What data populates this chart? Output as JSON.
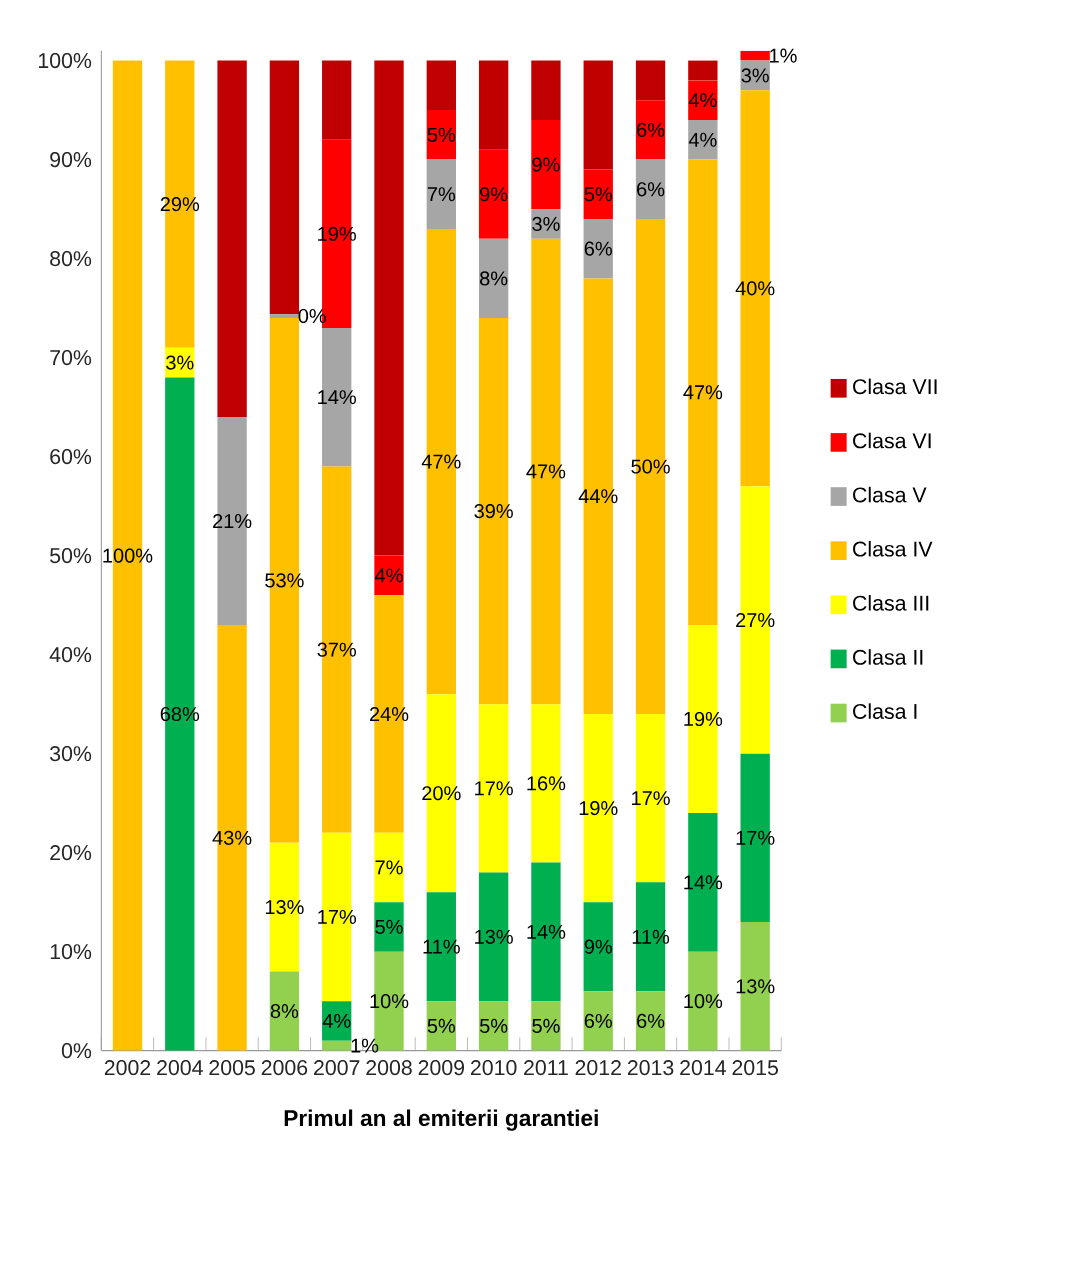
{
  "chart_data": {
    "type": "bar",
    "stacked": true,
    "xlabel": "Primul an al emiterii garantiei",
    "categories": [
      "2002",
      "2004",
      "2005",
      "2006",
      "2007",
      "2008",
      "2009",
      "2010",
      "2011",
      "2012",
      "2013",
      "2014",
      "2015"
    ],
    "ylim": [
      0,
      101
    ],
    "yticks": [
      {
        "value": 0,
        "label": "0%"
      },
      {
        "value": 10,
        "label": "10%"
      },
      {
        "value": 20,
        "label": "20%"
      },
      {
        "value": 30,
        "label": "30%"
      },
      {
        "value": 40,
        "label": "40%"
      },
      {
        "value": 50,
        "label": "50%"
      },
      {
        "value": 60,
        "label": "60%"
      },
      {
        "value": 70,
        "label": "70%"
      },
      {
        "value": 80,
        "label": "80%"
      },
      {
        "value": 90,
        "label": "90%"
      },
      {
        "value": 100,
        "label": "100%"
      }
    ],
    "legend": "right",
    "grid": false,
    "series": [
      {
        "name": "Clasa I",
        "color": "#92d050",
        "values": [
          0,
          0,
          0,
          8,
          1,
          10,
          5,
          5,
          5,
          6,
          6,
          10,
          13
        ],
        "value_labels": [
          null,
          null,
          null,
          "8%",
          "1%",
          "10%",
          "5%",
          "5%",
          "5%",
          "6%",
          "6%",
          "10%",
          "13%"
        ]
      },
      {
        "name": "Clasa II",
        "color": "#00b050",
        "values": [
          0,
          68,
          0,
          0,
          4,
          5,
          11,
          13,
          14,
          9,
          11,
          14,
          17
        ],
        "value_labels": [
          null,
          "68%",
          null,
          null,
          "4%",
          "5%",
          "11%",
          "13%",
          "14%",
          "9%",
          "11%",
          "14%",
          "17%"
        ]
      },
      {
        "name": "Clasa III",
        "color": "#ffff00",
        "values": [
          0,
          3,
          0,
          13,
          17,
          7,
          20,
          17,
          16,
          19,
          17,
          19,
          27
        ],
        "value_labels": [
          null,
          "3%",
          null,
          "13%",
          "17%",
          "7%",
          "20%",
          "17%",
          "16%",
          "19%",
          "17%",
          "19%",
          "27%"
        ]
      },
      {
        "name": "Clasa IV",
        "color": "#ffc000",
        "values": [
          100,
          29,
          43,
          53,
          37,
          24,
          47,
          39,
          47,
          44,
          50,
          47,
          40
        ],
        "value_labels": [
          "100%",
          "29%",
          "43%",
          "53%",
          "37%",
          "24%",
          "47%",
          "39%",
          "47%",
          "44%",
          "50%",
          "47%",
          "40%"
        ]
      },
      {
        "name": "Clasa V",
        "color": "#a6a6a6",
        "values": [
          0,
          0,
          21,
          0.4,
          14,
          0,
          7,
          8,
          3,
          6,
          6,
          4,
          3
        ],
        "value_labels": [
          null,
          null,
          "21%",
          "0%",
          "14%",
          null,
          "7%",
          "8%",
          "3%",
          "6%",
          "6%",
          "4%",
          "3%"
        ]
      },
      {
        "name": "Clasa VI",
        "color": "#ff0000",
        "values": [
          0,
          0,
          0,
          0,
          19,
          4,
          5,
          9,
          9,
          5,
          6,
          4,
          1
        ],
        "value_labels": [
          null,
          null,
          null,
          null,
          "19%",
          "4%",
          "5%",
          "9%",
          "9%",
          "5%",
          "6%",
          "4%",
          "1%"
        ]
      },
      {
        "name": "Clasa VII",
        "color": "#c00000",
        "values": [
          0,
          0,
          36,
          25.6,
          8,
          50,
          5,
          9,
          6,
          11,
          4,
          2,
          0
        ],
        "value_labels": [
          null,
          null,
          null,
          null,
          null,
          null,
          null,
          null,
          null,
          null,
          null,
          null,
          null
        ]
      }
    ]
  }
}
